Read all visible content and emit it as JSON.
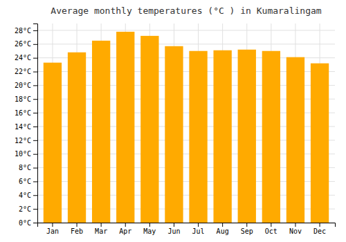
{
  "chart_data": {
    "type": "bar",
    "title": "Average monthly temperatures (°C ) in Kumaralingam",
    "categories": [
      "Jan",
      "Feb",
      "Mar",
      "Apr",
      "May",
      "Jun",
      "Jul",
      "Aug",
      "Sep",
      "Oct",
      "Nov",
      "Dec"
    ],
    "values": [
      23.3,
      24.8,
      26.5,
      27.8,
      27.2,
      25.7,
      25.0,
      25.1,
      25.2,
      25.0,
      24.1,
      23.2
    ],
    "color": "#FFAA00",
    "ylim": [
      0,
      29
    ],
    "yticks": [
      {
        "value": 0,
        "label": "0°C"
      },
      {
        "value": 2,
        "label": "2°C"
      },
      {
        "value": 4,
        "label": "4°C"
      },
      {
        "value": 6,
        "label": "6°C"
      },
      {
        "value": 8,
        "label": "8°C"
      },
      {
        "value": 10,
        "label": "10°C"
      },
      {
        "value": 12,
        "label": "12°C"
      },
      {
        "value": 14,
        "label": "14°C"
      },
      {
        "value": 16,
        "label": "16°C"
      },
      {
        "value": 18,
        "label": "18°C"
      },
      {
        "value": 20,
        "label": "20°C"
      },
      {
        "value": 22,
        "label": "22°C"
      },
      {
        "value": 24,
        "label": "24°C"
      },
      {
        "value": 26,
        "label": "26°C"
      },
      {
        "value": 28,
        "label": "28°C"
      }
    ],
    "grid": true
  }
}
